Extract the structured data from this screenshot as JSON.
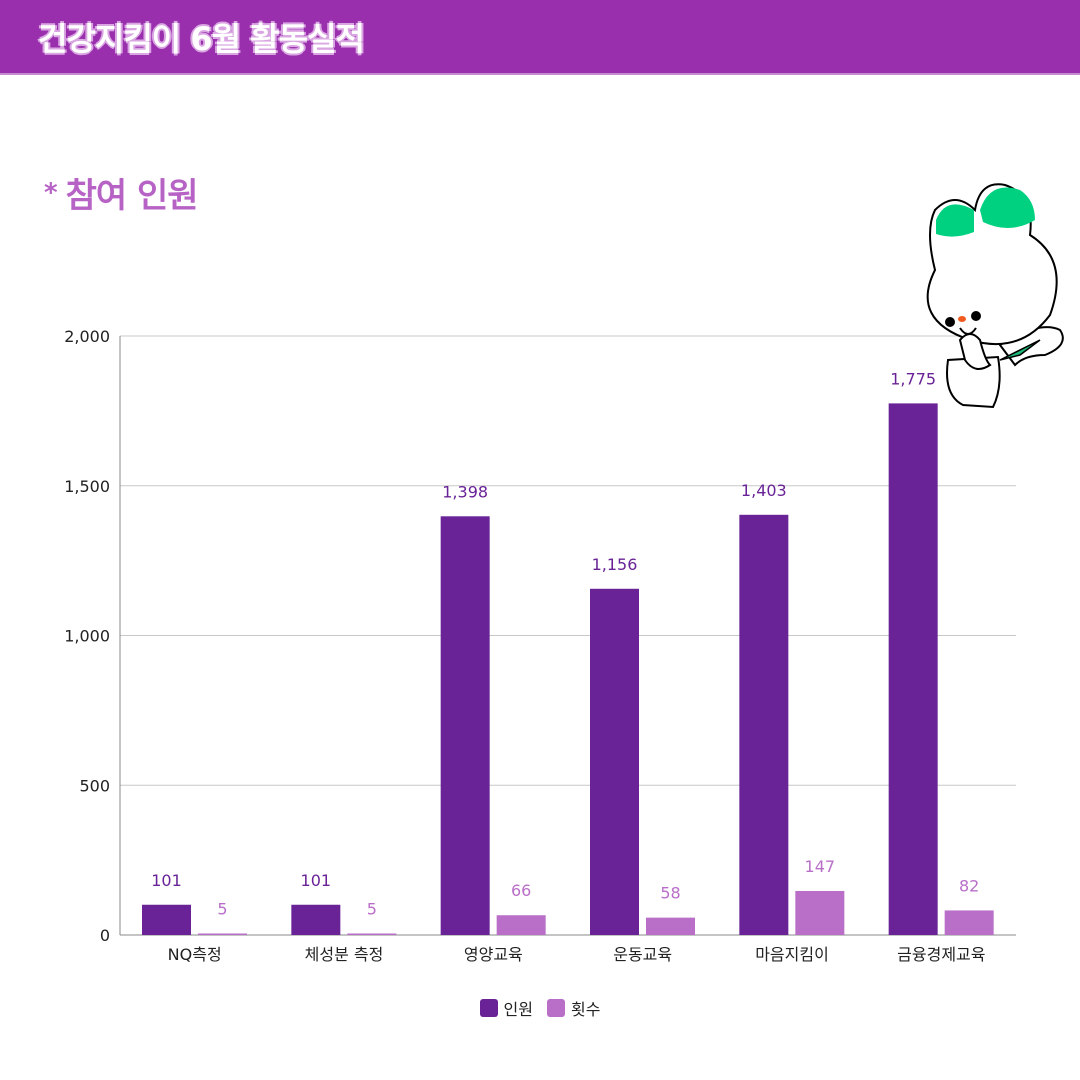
{
  "header": {
    "title": "건강지킴이 6월 활동실적"
  },
  "section": {
    "star": "*",
    "title": "참여 인원"
  },
  "colors": {
    "header": "#9a2fae",
    "people": "#692396",
    "count": "#b96fc8"
  },
  "chart_data": {
    "type": "bar",
    "title": "참여 인원",
    "categories": [
      "NQ측정",
      "체성분 측정",
      "영양교육",
      "운동교육",
      "마음지킴이",
      "금융경제교육"
    ],
    "series": [
      {
        "name": "인원",
        "values": [
          101,
          101,
          1398,
          1156,
          1403,
          1775
        ],
        "labels": [
          "101",
          "101",
          "1,398",
          "1,156",
          "1,403",
          "1,775"
        ]
      },
      {
        "name": "횟수",
        "values": [
          5,
          5,
          66,
          58,
          147,
          82
        ],
        "labels": [
          "5",
          "5",
          "66",
          "58",
          "147",
          "82"
        ]
      }
    ],
    "ylim": [
      0,
      2000
    ],
    "yticks": [
      0,
      500,
      1000,
      1500,
      2000
    ],
    "ytick_labels": [
      "0",
      "500",
      "1,000",
      "1,500",
      "2,000"
    ],
    "grid": true,
    "legend": "bottom-center"
  }
}
